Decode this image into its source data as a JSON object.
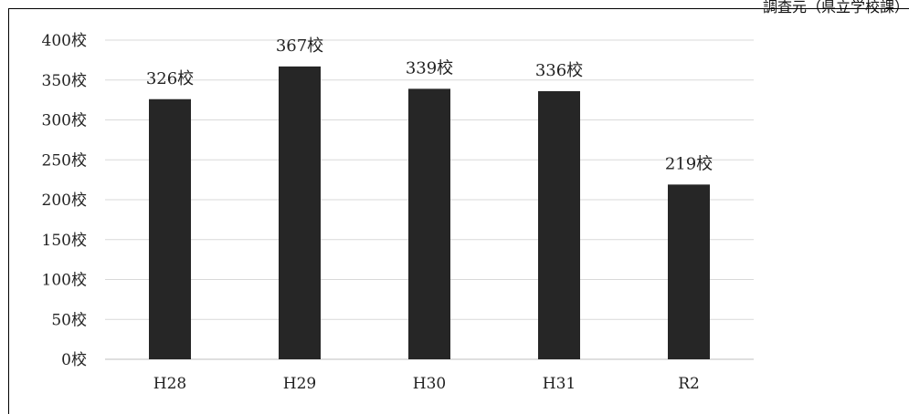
{
  "source_note": "調査元（県立学校課）",
  "chart_data": {
    "type": "bar",
    "categories": [
      "H28",
      "H29",
      "H30",
      "H31",
      "R2"
    ],
    "values": [
      326,
      367,
      339,
      336,
      219
    ],
    "data_labels": [
      "326校",
      "367校",
      "339校",
      "336校",
      "219校"
    ],
    "y_ticks": [
      "0校",
      "50校",
      "100校",
      "150校",
      "200校",
      "250校",
      "300校",
      "350校",
      "400校"
    ],
    "ylim": [
      0,
      400
    ],
    "grid": true,
    "title": "",
    "xlabel": "",
    "ylabel": "",
    "bar_color": "#262626",
    "grid_color": "#d9d9d9",
    "axis_color": "#bfbfbf"
  }
}
